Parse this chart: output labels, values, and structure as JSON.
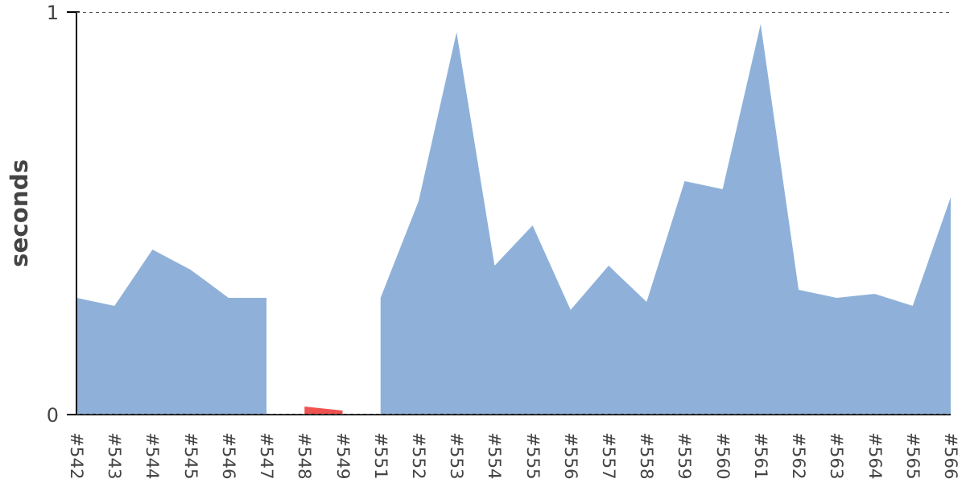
{
  "chart_data": {
    "type": "area",
    "ylabel": "seconds",
    "categories": [
      "#542",
      "#543",
      "#544",
      "#545",
      "#546",
      "#547",
      "#548",
      "#549",
      "#551",
      "#552",
      "#553",
      "#554",
      "#555",
      "#556",
      "#557",
      "#558",
      "#559",
      "#560",
      "#561",
      "#562",
      "#563",
      "#564",
      "#565",
      "#566"
    ],
    "series": [
      {
        "color": "#8fb1d9",
        "values": [
          0.29,
          0.27,
          0.41,
          0.36,
          0.29,
          0.29,
          null,
          null,
          0.29,
          0.53,
          0.95,
          0.37,
          0.47,
          0.26,
          0.37,
          0.28,
          0.58,
          0.56,
          0.97,
          0.31,
          0.29,
          0.3,
          0.27,
          0.54
        ]
      },
      {
        "color": "#ef5350",
        "values": [
          null,
          null,
          null,
          null,
          null,
          null,
          0.02,
          0.01,
          null,
          null,
          null,
          null,
          null,
          null,
          null,
          null,
          null,
          null,
          null,
          null,
          null,
          null,
          null,
          null
        ]
      }
    ],
    "ylim": [
      0,
      1
    ],
    "yticks": [
      0,
      1
    ],
    "grid": "y"
  }
}
